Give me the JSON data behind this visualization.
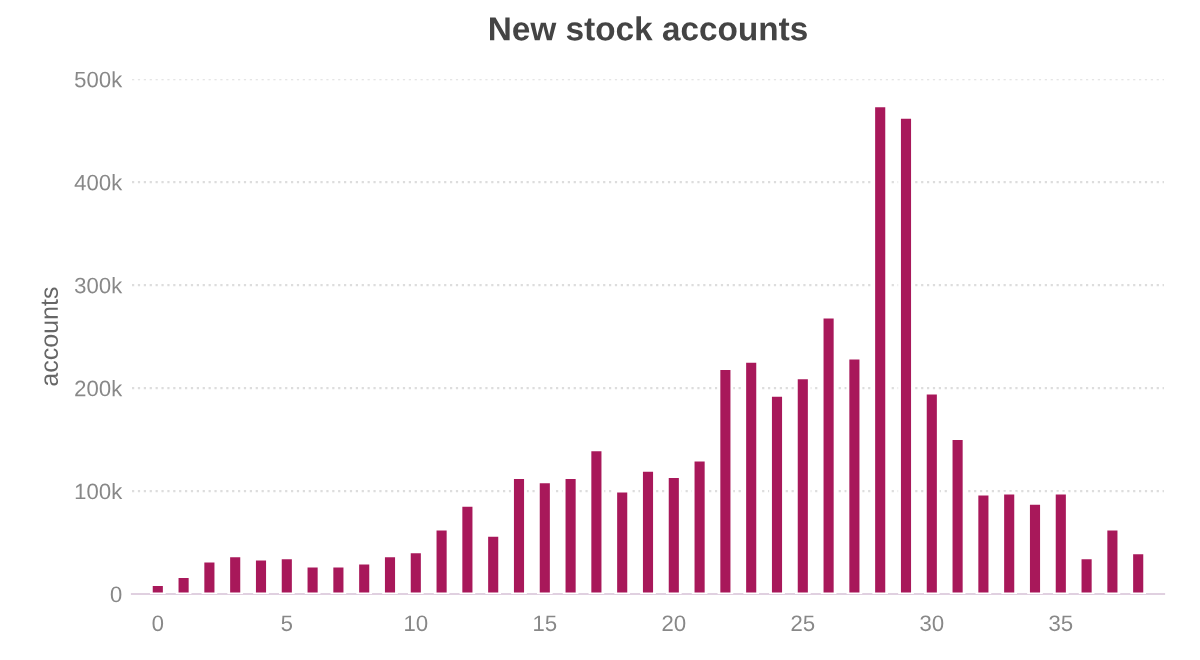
{
  "chart_data": {
    "type": "bar",
    "title": "New stock accounts",
    "ylabel": "accounts",
    "x": [
      0,
      1,
      2,
      3,
      4,
      5,
      6,
      7,
      8,
      9,
      10,
      11,
      12,
      13,
      14,
      15,
      16,
      17,
      18,
      19,
      20,
      21,
      22,
      23,
      24,
      25,
      26,
      27,
      28,
      29,
      30,
      31,
      32,
      33,
      34,
      35,
      36,
      37,
      38
    ],
    "values": [
      9000,
      17000,
      32000,
      37000,
      34000,
      35000,
      27000,
      27000,
      30000,
      37000,
      41000,
      63000,
      86000,
      57000,
      113000,
      109000,
      113000,
      140000,
      100000,
      120000,
      114000,
      130000,
      219000,
      226000,
      193000,
      210000,
      269000,
      229000,
      474000,
      463000,
      195000,
      151000,
      97000,
      98000,
      88000,
      98000,
      35000,
      63000,
      40000
    ],
    "color": "#a8185a",
    "xlim": [
      -1,
      39
    ],
    "xticks": [
      0,
      5,
      10,
      15,
      20,
      25,
      30,
      35
    ],
    "ylim": [
      0,
      500000
    ],
    "yticks": [
      {
        "value": 0,
        "label": "0"
      },
      {
        "value": 100000,
        "label": "100k"
      },
      {
        "value": 200000,
        "label": "200k"
      },
      {
        "value": 300000,
        "label": "300k"
      },
      {
        "value": 400000,
        "label": "400k"
      },
      {
        "value": 500000,
        "label": "500k"
      }
    ],
    "grid": "y",
    "legend": false
  }
}
